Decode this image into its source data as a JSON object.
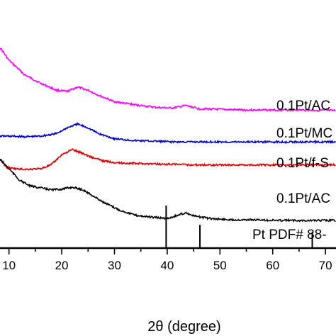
{
  "chart_data": {
    "type": "line",
    "title": "",
    "xlabel": "2θ (degree)",
    "ylabel": "",
    "xlim": [
      8.3,
      72
    ],
    "y_axis": "stacked traces, arbitrary intensity (no tick labels shown)",
    "x_ticks": [
      "10",
      "20",
      "30",
      "40",
      "50",
      "60",
      "70"
    ],
    "grid": false,
    "series": [
      {
        "label": "0.1Pt/AC",
        "color": "#ff00ff",
        "x": [
          8.3,
          10,
          13,
          16,
          19,
          21,
          23,
          25,
          27,
          30,
          34,
          38,
          41,
          43.5,
          46,
          50,
          55,
          60,
          65,
          72
        ],
        "y": [
          0.9,
          0.7,
          0.47,
          0.34,
          0.23,
          0.21,
          0.28,
          0.23,
          0.15,
          0.05,
          0.0,
          -0.04,
          -0.05,
          -0.01,
          -0.06,
          -0.07,
          -0.08,
          -0.08,
          -0.08,
          -0.09
        ]
      },
      {
        "label": "0.1Pt/MC",
        "color": "#0000cc",
        "x": [
          8.3,
          10,
          13,
          16,
          19,
          21,
          23,
          25,
          27,
          30,
          34,
          38,
          41,
          43.5,
          46,
          50,
          55,
          60,
          65,
          72
        ],
        "y": [
          0.11,
          0.11,
          0.1,
          0.11,
          0.15,
          0.24,
          0.3,
          0.24,
          0.15,
          0.07,
          0.04,
          0.03,
          0.02,
          0.02,
          0.02,
          0.02,
          0.02,
          0.02,
          0.02,
          0.02
        ]
      },
      {
        "label": "0.1Pt/f-S",
        "color": "#dd0000",
        "x": [
          8.3,
          9.5,
          11,
          13,
          16,
          18,
          20,
          22,
          24,
          26,
          28,
          31,
          35,
          40,
          45,
          50,
          55,
          60,
          65,
          72
        ],
        "y": [
          0.15,
          0.02,
          0.0,
          -0.01,
          0.0,
          0.06,
          0.22,
          0.3,
          0.24,
          0.17,
          0.12,
          0.09,
          0.08,
          0.07,
          0.06,
          0.06,
          0.06,
          0.06,
          0.06,
          0.06
        ]
      },
      {
        "label": "0.1Pt/AC",
        "color": "#000000",
        "x": [
          8.3,
          10,
          12,
          14,
          16,
          18,
          20,
          22,
          24,
          26,
          28,
          31,
          34,
          37,
          40,
          42,
          43.5,
          45,
          48,
          52,
          56,
          60,
          65,
          72
        ],
        "y": [
          0.75,
          0.6,
          0.42,
          0.33,
          0.3,
          0.27,
          0.28,
          0.31,
          0.27,
          0.17,
          0.07,
          -0.05,
          -0.13,
          -0.16,
          -0.18,
          -0.13,
          -0.09,
          -0.14,
          -0.18,
          -0.2,
          -0.2,
          -0.21,
          -0.21,
          -0.21
        ]
      }
    ],
    "reference": {
      "label": "Pt PDF# 88-",
      "peaks": [
        {
          "x": 39.8,
          "relative_intensity": 1.0
        },
        {
          "x": 46.2,
          "relative_intensity": 0.55
        },
        {
          "x": 67.5,
          "relative_intensity": 0.38
        }
      ]
    }
  }
}
